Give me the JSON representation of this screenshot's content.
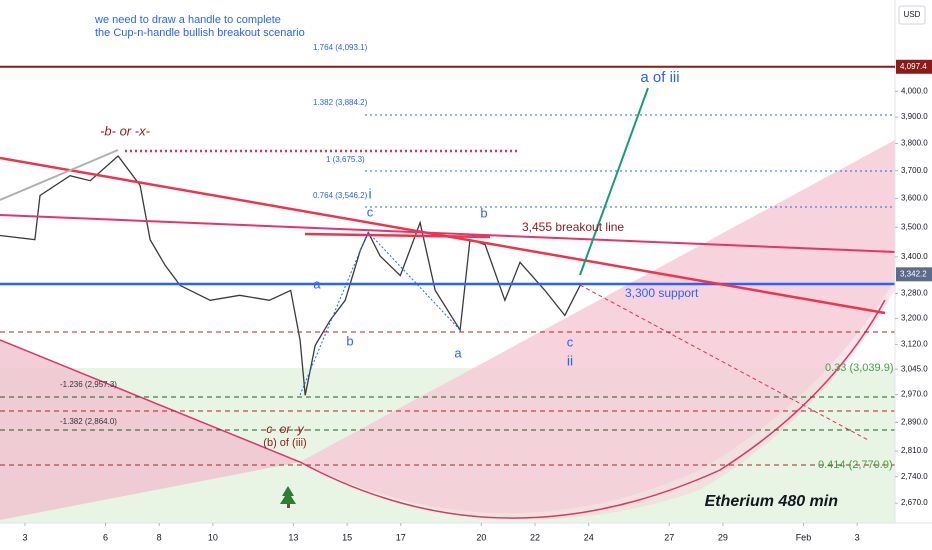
{
  "chart_data": {
    "type": "line",
    "currency": "USD",
    "log_scale": true,
    "color": "#3a3a3a",
    "xlim": [
      2.07,
      35.41
    ],
    "xticks": [
      3,
      6,
      8,
      10,
      13,
      15,
      17,
      20,
      22,
      24,
      27,
      29,
      {
        "value": 32,
        "label": "Feb"
      },
      {
        "value": 34,
        "label": "3"
      }
    ],
    "ylim": [
      2626,
      4375
    ],
    "yticks": [
      {
        "value": 2670,
        "label": "2,670.0"
      },
      {
        "value": 2740,
        "label": "2,740.0"
      },
      {
        "value": 2810,
        "label": "2,810.0"
      },
      {
        "value": 2890,
        "label": "2,890.0"
      },
      {
        "value": 2970,
        "label": "2,970.0"
      },
      {
        "value": 3045,
        "label": "3,045.0"
      },
      {
        "value": 3120,
        "label": "3,120.0"
      },
      {
        "value": 3200,
        "label": "3,200.0"
      },
      {
        "value": 3280,
        "label": "3,280.0"
      },
      {
        "value": 3400,
        "label": "3,400.0"
      },
      {
        "value": 3500,
        "label": "3,500.0"
      },
      {
        "value": 3600,
        "label": "3,600.0"
      },
      {
        "value": 3700,
        "label": "3,700.0"
      },
      {
        "value": 3800,
        "label": "3,800.0"
      },
      {
        "value": 3900,
        "label": "3,900.0"
      },
      {
        "value": 4000,
        "label": "4,000.0"
      }
    ],
    "x": [
      2.07,
      3.37,
      3.56,
      4.68,
      5.43,
      6.47,
      7.29,
      7.66,
      8.22,
      8.78,
      9.9,
      11.0,
      12.1,
      12.9,
      13.25,
      13.44,
      13.81,
      14.37,
      14.93,
      15.49,
      15.79,
      16.23,
      16.98,
      17.72,
      18.28,
      19.21,
      19.58,
      20.14,
      20.88,
      21.44,
      22.37,
      23.11,
      23.68
    ],
    "values": [
      3472,
      3458,
      3611,
      3682,
      3664,
      3754,
      3647,
      3458,
      3372,
      3306,
      3258,
      3274,
      3258,
      3290,
      3133,
      2968,
      3117,
      3195,
      3258,
      3422,
      3482,
      3403,
      3338,
      3516,
      3290,
      3164,
      3458,
      3441,
      3258,
      3382,
      3290,
      3210,
      3306
    ],
    "price_labels": [
      {
        "value": 4097.4,
        "label": "4,097.4",
        "color": "#8b1a1a"
      },
      {
        "value": 3342.2,
        "label": "3,342.2",
        "color": "#5b6b8c"
      }
    ],
    "annotations": [
      "we need to draw a handle to complete",
      "the Cup-n-handle bullish breakout scenario",
      "-b- or -x-",
      "i",
      "c",
      "b",
      "a",
      "b",
      "a",
      "c",
      "ii",
      "a of iii",
      "3,455 breakout line",
      "3,300 support",
      "-c- or -y-",
      "(b) of (iii)",
      "0.33 (3,039.9)",
      "0.414 (2,770.9)",
      "1.764 (4,093.1)",
      "1.382 (3,884.2)",
      "1 (3,675.3)",
      "0.764 (3,546.2)",
      "-1.236 (2,957.3)",
      "-1.382 (2,864.0)",
      "Etherium 480 min"
    ]
  }
}
